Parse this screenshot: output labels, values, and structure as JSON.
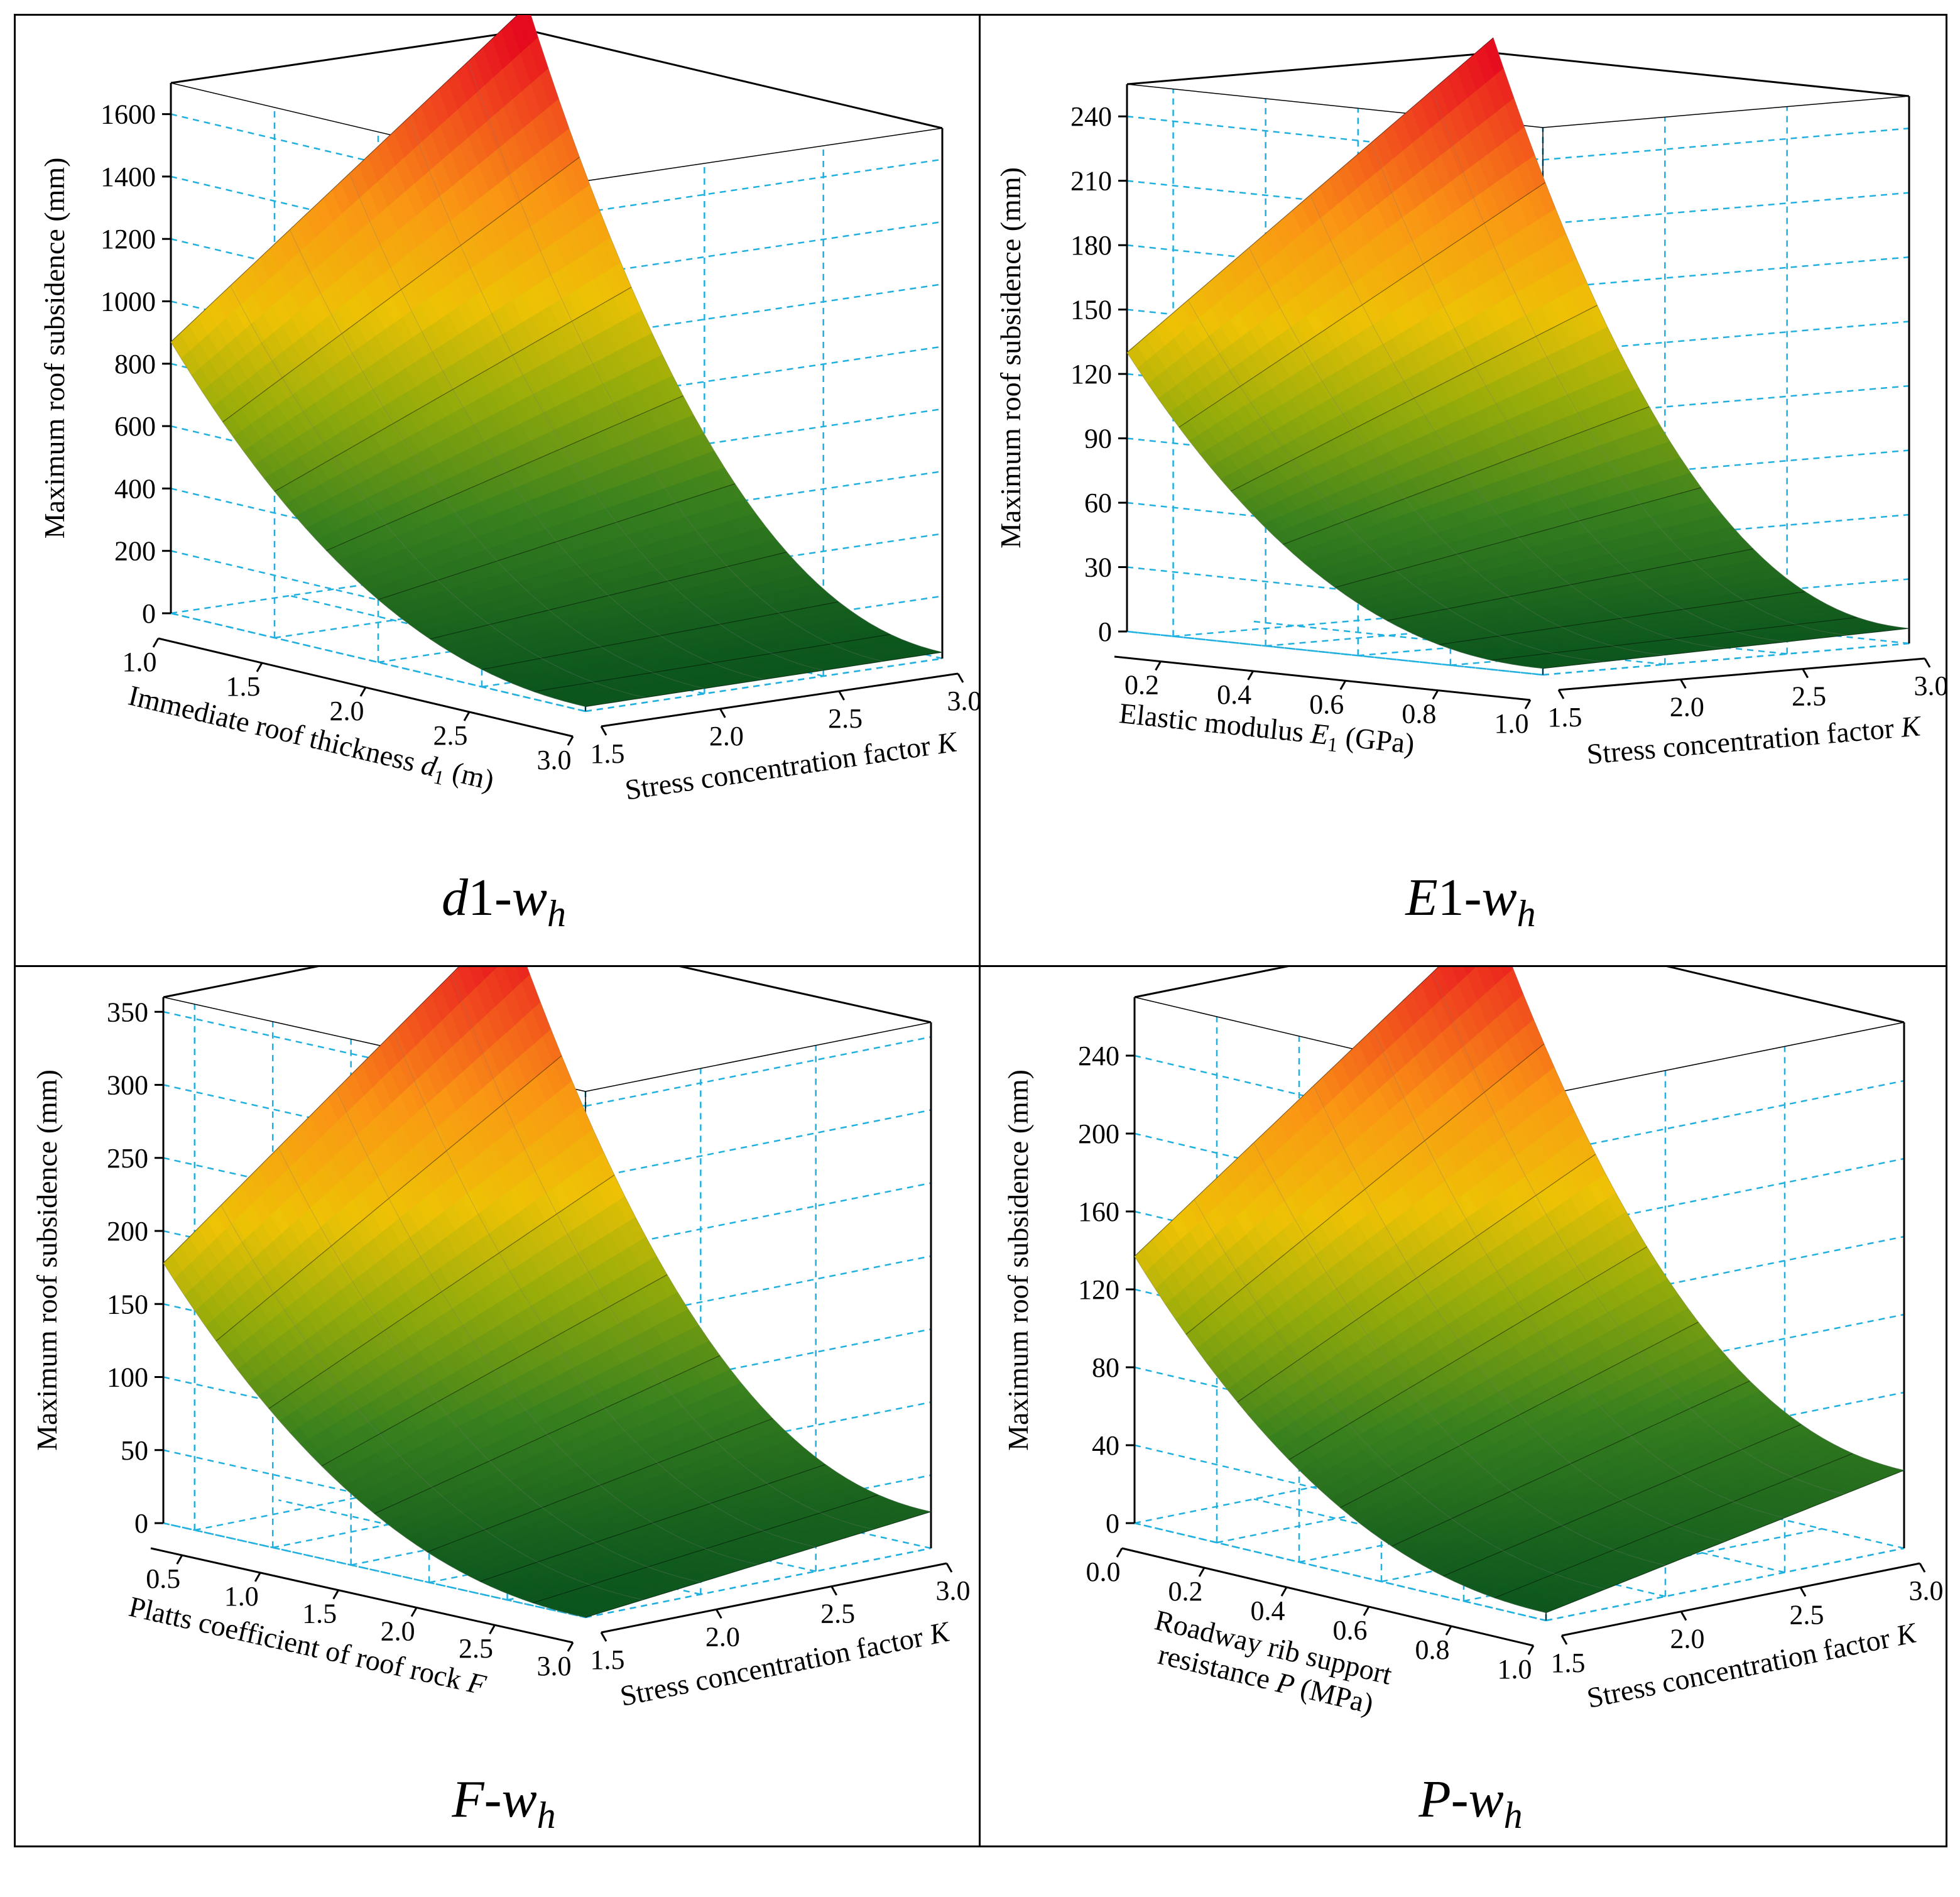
{
  "chart_data": [
    {
      "type": "surface3d",
      "panel": "top-left",
      "title_var": "d",
      "title_sub": "1",
      "title_out": "w",
      "title_out_sub": "h",
      "zlabel": "Maximum roof subsidence  (mm)",
      "ylabel_pre": "Immediate roof thickness ",
      "ylabel_var": "d",
      "ylabel_sub": "1",
      "ylabel_post": " (m)",
      "xlabel_pre": "Stress concentration factor ",
      "xlabel_var": "K",
      "zticks": [
        "0",
        "200",
        "400",
        "600",
        "800",
        "1000",
        "1200",
        "1400",
        "1600"
      ],
      "zlim": [
        0,
        1700
      ],
      "yticks": [
        "1.0",
        "1.5",
        "2.0",
        "2.5",
        "3.0"
      ],
      "ylim": [
        1.0,
        3.0
      ],
      "xticks": [
        "1.5",
        "2.0",
        "2.5",
        "3.0"
      ],
      "xlim": [
        1.5,
        3.0
      ],
      "corners": {
        "k1.5_p1.0": 870,
        "k3.0_p1.0": 1780,
        "k1.5_p3.0": 15,
        "k3.0_p3.0": 20
      }
    },
    {
      "type": "surface3d",
      "panel": "top-right",
      "title_var": "E",
      "title_sub": "1",
      "title_out": "w",
      "title_out_sub": "h",
      "zlabel": "Maximum roof subsidence (mm)",
      "ylabel_pre": "Elastic modulus ",
      "ylabel_var": "E",
      "ylabel_sub": "1",
      "ylabel_post": " (GPa)",
      "xlabel_pre": "Stress concentration factor ",
      "xlabel_var": "K",
      "zticks": [
        "0",
        "30",
        "60",
        "90",
        "120",
        "150",
        "180",
        "210",
        "240"
      ],
      "zlim": [
        0,
        255
      ],
      "yticks": [
        "0.2",
        "0.4",
        "0.6",
        "0.8",
        "1.0"
      ],
      "ylim": [
        0.1,
        1.0
      ],
      "xticks": [
        "1.5",
        "2.0",
        "2.5",
        "3.0"
      ],
      "xlim": [
        1.5,
        3.0
      ],
      "corners": {
        "k1.5_p1.0": 130,
        "k3.0_p1.0": 262,
        "k1.5_p3.0": 3,
        "k3.0_p3.0": 7
      }
    },
    {
      "type": "surface3d",
      "panel": "bottom-left",
      "title_var": "F",
      "title_sub": "",
      "title_out": "w",
      "title_out_sub": "h",
      "zlabel": "Maximum roof subsidence (mm)",
      "ylabel_pre": "Platts coefficient of roof rock  ",
      "ylabel_var": "F",
      "ylabel_sub": "",
      "ylabel_post": "",
      "xlabel_pre": "Stress concentration factor ",
      "xlabel_var": "K",
      "zticks": [
        "0",
        "50",
        "100",
        "150",
        "200",
        "250",
        "300",
        "350"
      ],
      "zlim": [
        0,
        360
      ],
      "yticks": [
        "0.5",
        "1.0",
        "1.5",
        "2.0",
        "2.5",
        "3.0"
      ],
      "ylim": [
        0.3,
        3.0
      ],
      "xticks": [
        "1.5",
        "2.0",
        "2.5",
        "3.0"
      ],
      "xlim": [
        1.5,
        3.0
      ],
      "corners": {
        "k1.5_p1.0": 178,
        "k3.0_p1.0": 368,
        "k1.5_p3.0": 0,
        "k3.0_p3.0": 25
      }
    },
    {
      "type": "surface3d",
      "panel": "bottom-right",
      "title_var": "P",
      "title_sub": "",
      "title_out": "w",
      "title_out_sub": "h",
      "zlabel": "Maximum roof subsidence (mm)",
      "ylabel_pre": "Roadway rib support",
      "ylabel_line2_pre": "resistance ",
      "ylabel_var": "P",
      "ylabel_sub": "",
      "ylabel_post": " (MPa)",
      "xlabel_pre": "Stress concentration factor  ",
      "xlabel_var": "K",
      "zticks": [
        "0",
        "40",
        "80",
        "120",
        "160",
        "200",
        "240"
      ],
      "zlim": [
        0,
        270
      ],
      "yticks": [
        "0.0",
        "0.2",
        "0.4",
        "0.6",
        "0.8",
        "1.0"
      ],
      "ylim": [
        0.0,
        1.0
      ],
      "xticks": [
        "1.5",
        "2.0",
        "2.5",
        "3.0"
      ],
      "xlim": [
        1.5,
        3.0
      ],
      "corners": {
        "k1.5_p1.0": 137,
        "k3.0_p1.0": 275,
        "k1.5_p3.0": 4,
        "k3.0_p3.0": 40
      }
    }
  ]
}
